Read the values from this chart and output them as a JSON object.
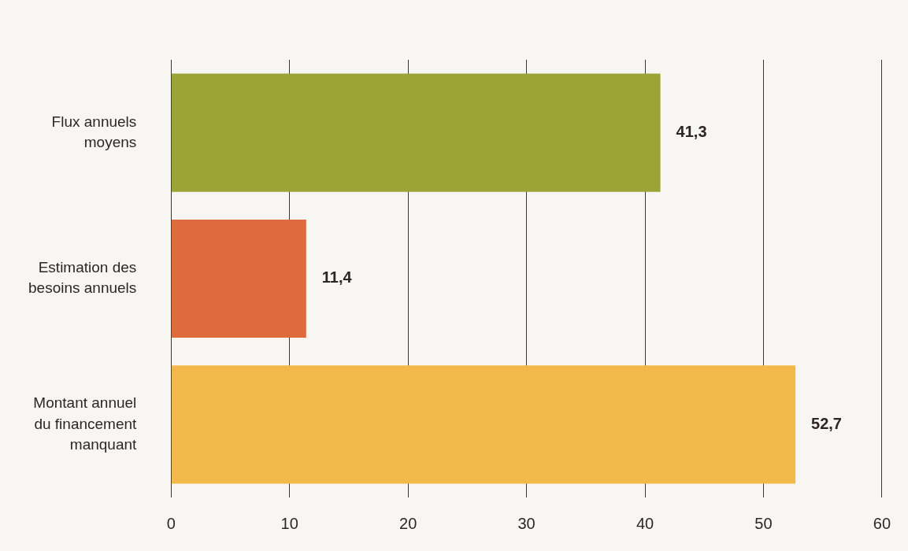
{
  "chart_data": {
    "type": "bar",
    "orientation": "horizontal",
    "categories": [
      "Flux annuels moyens",
      "Estimation des besoins annuels",
      "Montant annuel du financement manquant"
    ],
    "values": [
      41.3,
      11.4,
      52.7
    ],
    "colors": [
      "#9ca337",
      "#dd6b3b",
      "#f3b84a"
    ],
    "value_labels": [
      "41,3",
      "11,4",
      "52,7"
    ],
    "xlim": [
      0,
      60
    ],
    "xticks": [
      0,
      10,
      20,
      30,
      40,
      50,
      60
    ],
    "grid": "x"
  }
}
